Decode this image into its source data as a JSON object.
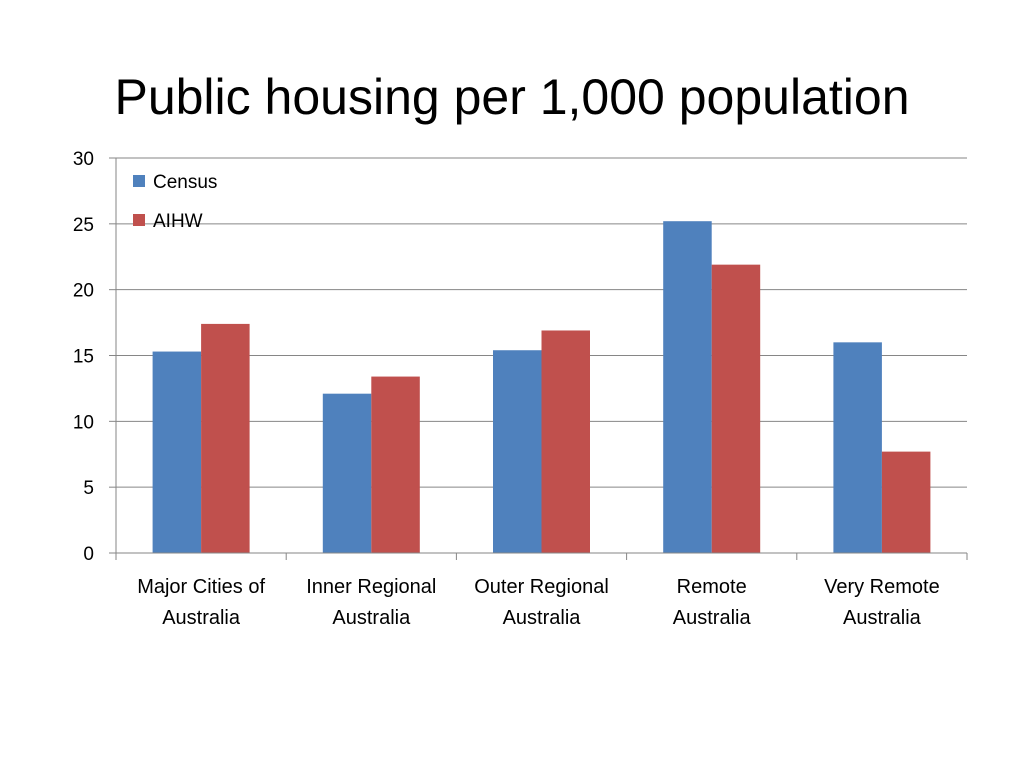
{
  "slide": {
    "title": "Public housing per 1,000 population"
  },
  "chart_data": {
    "type": "bar",
    "title": "Public housing per 1,000 population",
    "categories": [
      [
        "Major Cities of",
        "Australia"
      ],
      [
        "Inner Regional",
        "Australia"
      ],
      [
        "Outer Regional",
        "Australia"
      ],
      [
        "Remote",
        "Australia"
      ],
      [
        "Very Remote",
        "Australia"
      ]
    ],
    "series": [
      {
        "name": "Census",
        "color": "#4f81bd",
        "values": [
          15.3,
          12.1,
          15.4,
          25.2,
          16.0
        ]
      },
      {
        "name": "AIHW",
        "color": "#c0504d",
        "values": [
          17.4,
          13.4,
          16.9,
          21.9,
          7.7
        ]
      }
    ],
    "ylim": [
      0,
      30
    ],
    "yticks": [
      "0",
      "5",
      "10",
      "15",
      "20",
      "25",
      "30"
    ],
    "grid": true,
    "legend_position": "top-left"
  }
}
